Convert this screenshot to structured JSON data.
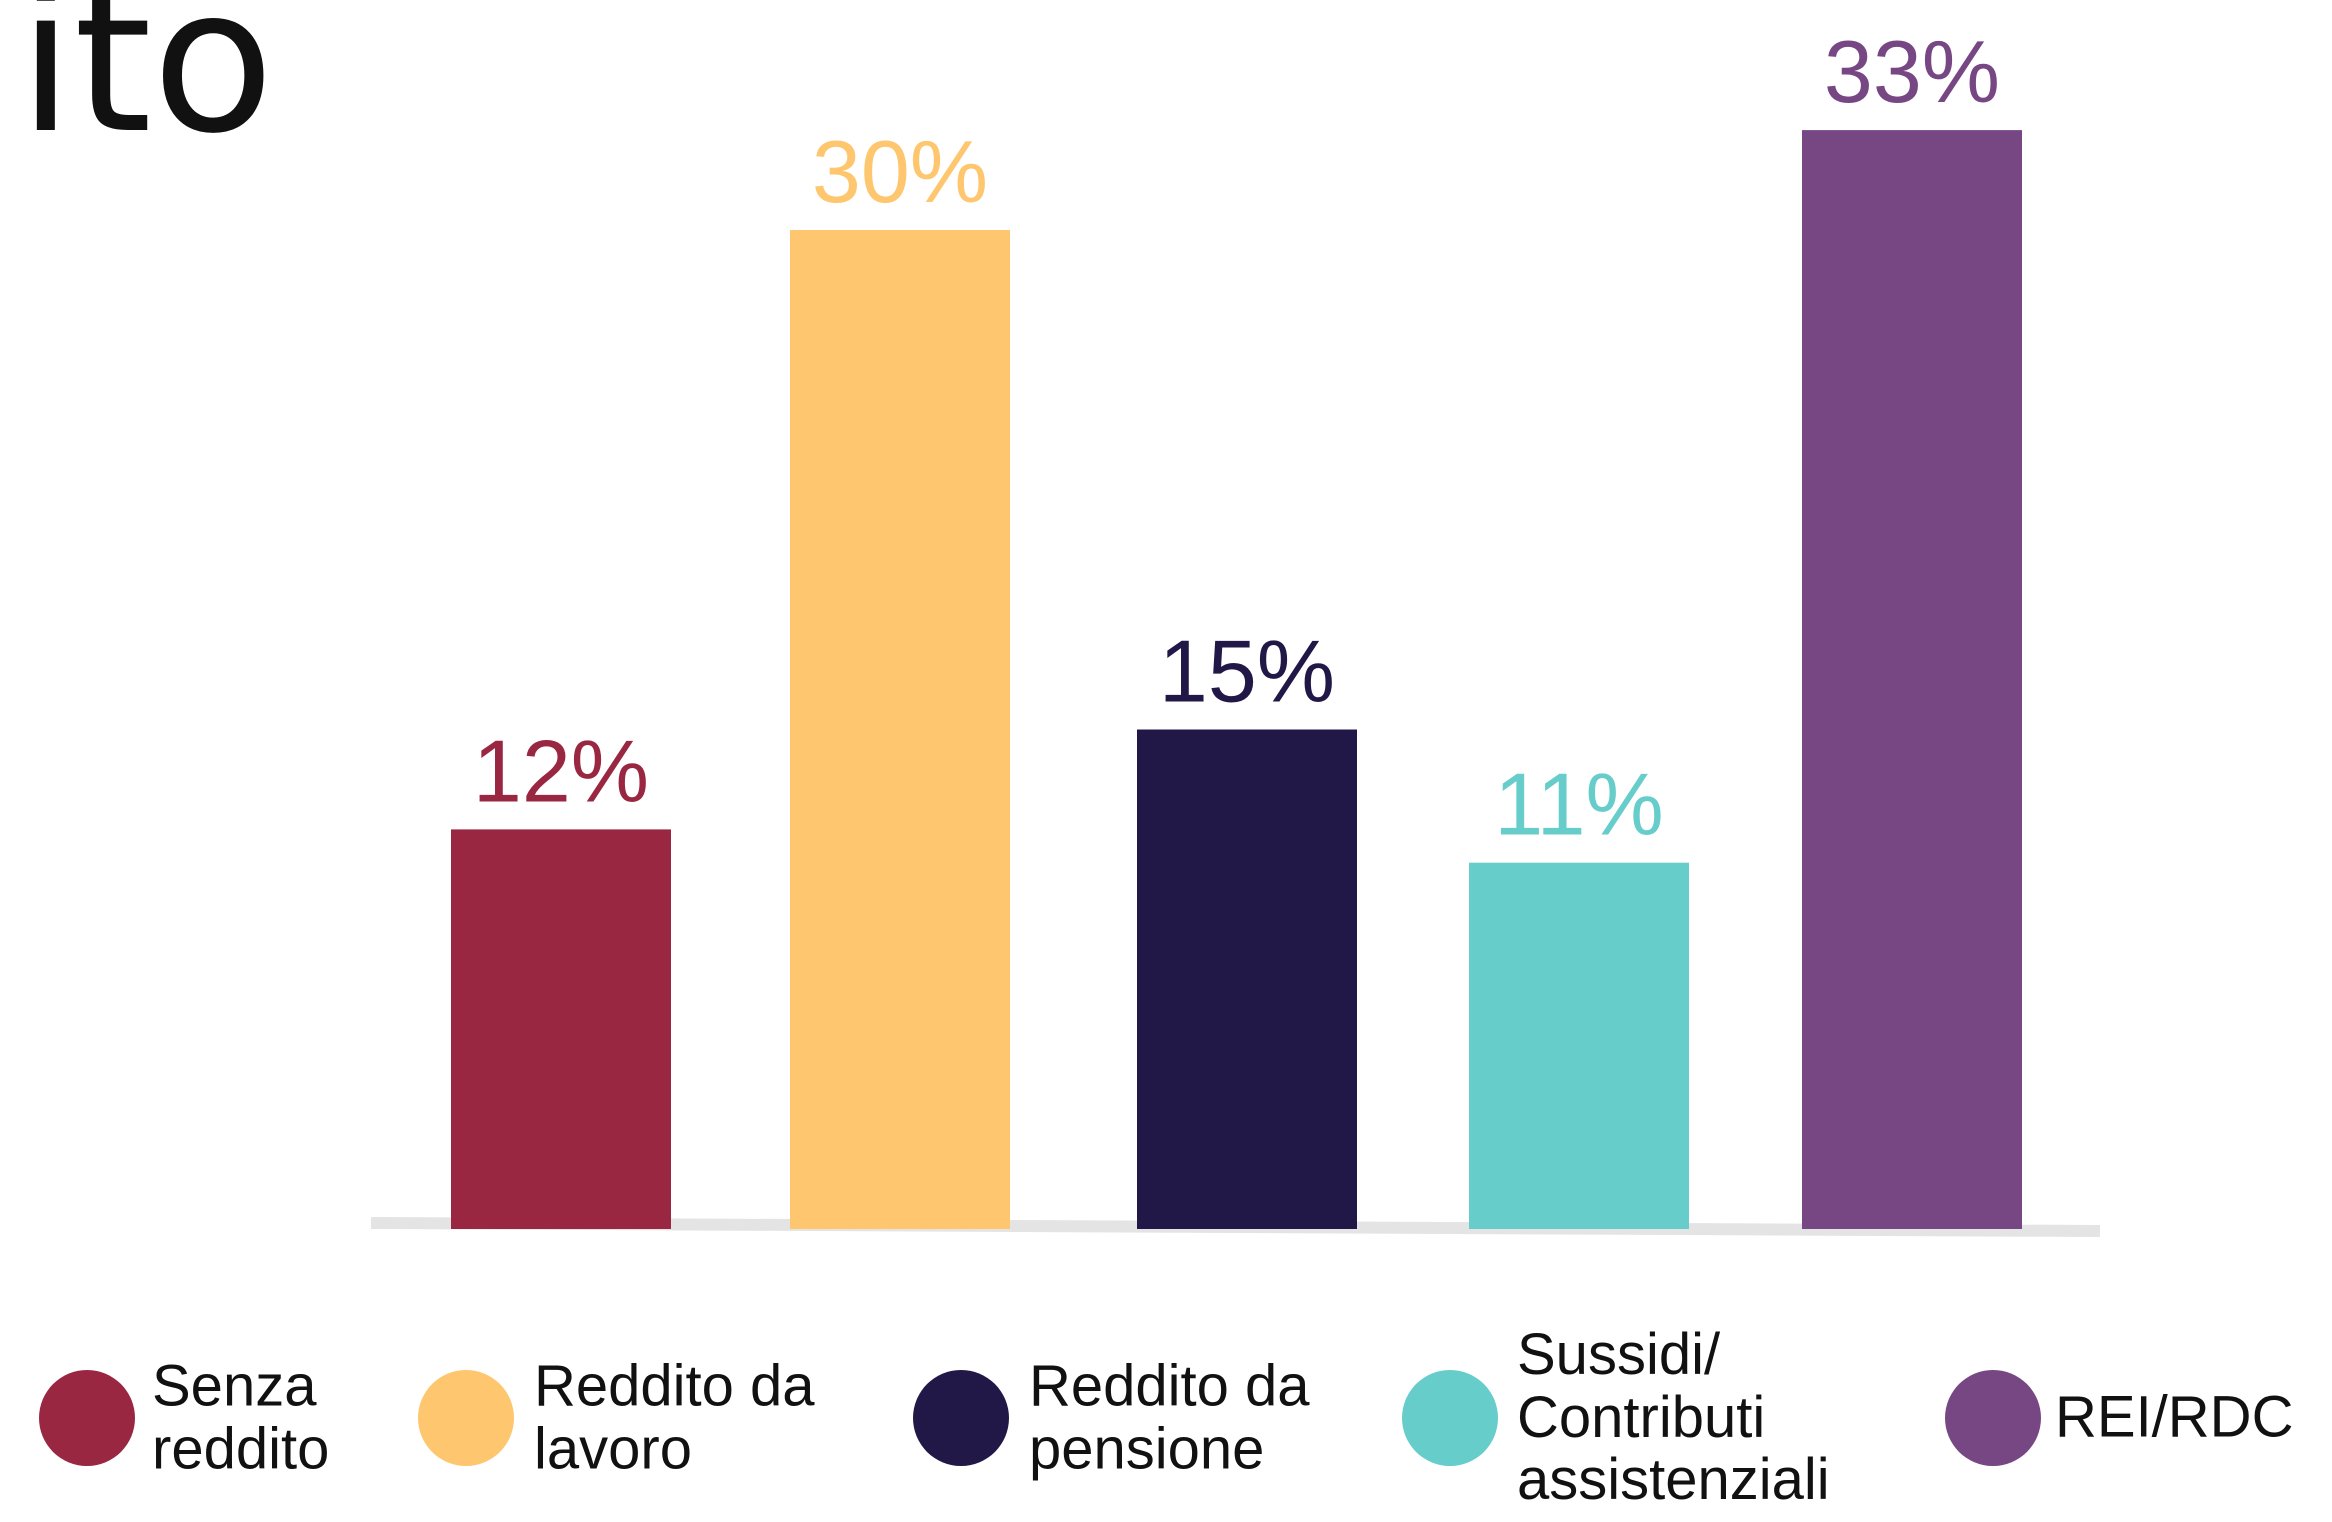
{
  "chart_data": {
    "type": "bar",
    "title": "ito",
    "categories": [
      "Senza reddito",
      "Reddito da lavoro",
      "Reddito da pensione",
      "Sussidi/ Contributi assistenziali",
      "REI/RDC"
    ],
    "values": [
      12,
      30,
      15,
      11,
      33
    ],
    "value_labels": [
      "12%",
      "30%",
      "15%",
      "11%",
      "33%"
    ],
    "colors": [
      "#9a2741",
      "#fec66e",
      "#211847",
      "#67cdcb",
      "#774784"
    ],
    "legend": "bottom"
  }
}
